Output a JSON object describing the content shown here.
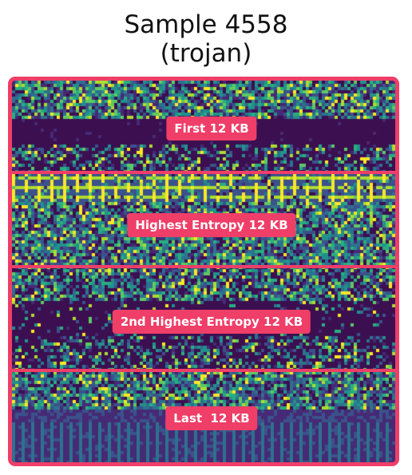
{
  "title": {
    "line1": "Sample 4558",
    "line2": "(trojan)"
  },
  "sections": [
    {
      "label": "First 12 KB"
    },
    {
      "label": "Highest Entropy 12 KB"
    },
    {
      "label": "2nd Highest Entropy 12 KB"
    },
    {
      "label": "Last  12 KB"
    }
  ],
  "colors": {
    "accent": "#ef3e68",
    "palette": [
      "#3b0f50",
      "#462a75",
      "#3b528b",
      "#2c728e",
      "#21918c",
      "#28ae80",
      "#5ec962",
      "#addc30",
      "#fde725"
    ]
  }
}
